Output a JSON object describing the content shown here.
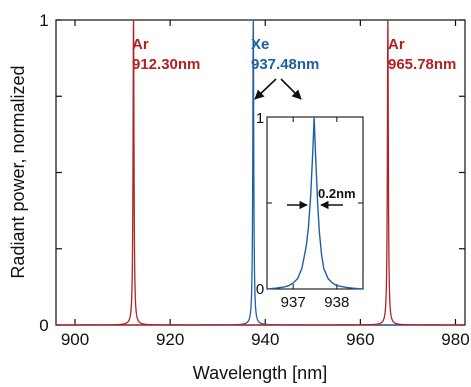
{
  "chart_data": {
    "type": "line",
    "title": "",
    "xlabel": "Wavelength [nm]",
    "ylabel": "Radiant power, normalized",
    "xlim": [
      896,
      982
    ],
    "ylim": [
      0,
      1
    ],
    "x_ticks": [
      900,
      920,
      940,
      960,
      980
    ],
    "x_tick_labels": [
      "900",
      "920",
      "940",
      "960",
      "980"
    ],
    "y_tick_labels": [
      {
        "value": 0,
        "label": "0"
      },
      {
        "value": 1,
        "label": "1"
      }
    ],
    "y_minor_ticks": [
      0.25,
      0.5,
      0.75
    ],
    "grid": false,
    "legend": "none",
    "series": [
      {
        "label_line1": "Ar",
        "label_line2": "912.30nm",
        "peak_nm": 912.3,
        "peak_value": 1.0,
        "color": "#b22222"
      },
      {
        "label_line1": "Xe",
        "label_line2": "937.48nm",
        "peak_nm": 937.48,
        "peak_value": 1.0,
        "color": "#1f5fa8"
      },
      {
        "label_line1": "Ar",
        "label_line2": "965.78nm",
        "peak_nm": 965.78,
        "peak_value": 1.0,
        "color": "#b22222"
      }
    ],
    "inset": {
      "xlim": [
        936.4,
        938.6
      ],
      "ylim": [
        0,
        1
      ],
      "x_ticks": [
        937,
        938
      ],
      "x_tick_labels": [
        "937",
        "938"
      ],
      "y_tick_labels": [
        {
          "value": 0,
          "label": "0"
        },
        {
          "value": 1,
          "label": "1"
        }
      ],
      "y_minor_ticks": [
        0.5
      ],
      "series_color": "#1f5fa8",
      "x": [
        936.4,
        936.6,
        936.8,
        936.9,
        937.0,
        937.1,
        937.2,
        937.3,
        937.35,
        937.4,
        937.45,
        937.48,
        937.51,
        937.56,
        937.6,
        937.65,
        937.7,
        937.8,
        937.9,
        938.0,
        938.2,
        938.4,
        938.6
      ],
      "y": [
        0.0,
        0.005,
        0.012,
        0.02,
        0.035,
        0.06,
        0.12,
        0.25,
        0.36,
        0.54,
        0.8,
        1.0,
        0.8,
        0.5,
        0.33,
        0.2,
        0.12,
        0.06,
        0.035,
        0.02,
        0.01,
        0.004,
        0.0
      ],
      "fwhm_label": "0.2nm"
    }
  }
}
